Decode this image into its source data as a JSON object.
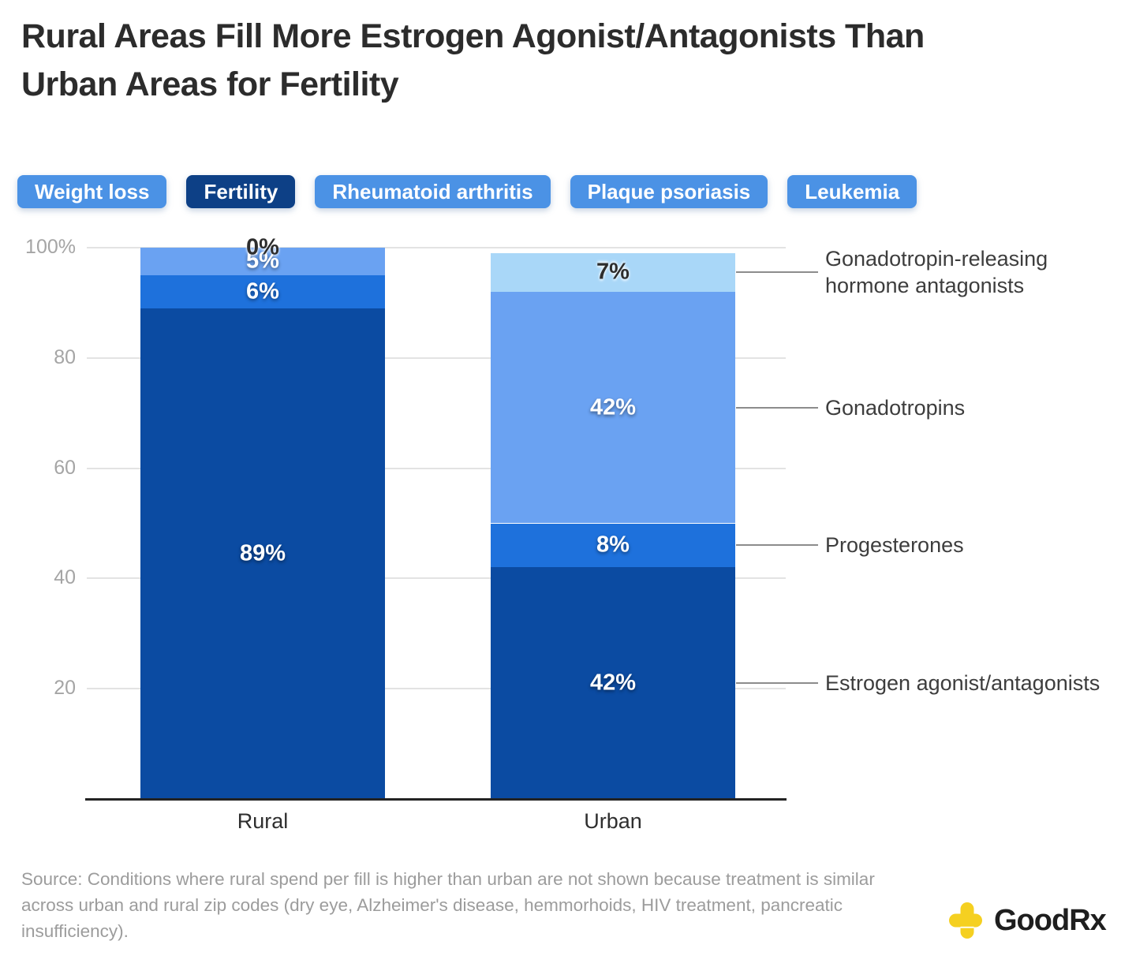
{
  "title": {
    "lines": [
      "Rural Areas Fill More Estrogen Agonist/Antagonists Than",
      "Urban Areas for Fertility"
    ]
  },
  "tabs": [
    {
      "label": "Weight loss",
      "selected": false
    },
    {
      "label": "Fertility",
      "selected": true
    },
    {
      "label": "Rheumatoid arthritis",
      "selected": false
    },
    {
      "label": "Plaque psoriasis",
      "selected": false
    },
    {
      "label": "Leukemia",
      "selected": false
    }
  ],
  "colors": {
    "tab": "#4b92e5",
    "tab_selected": "#0d4086",
    "gridline": "#e3e3e3",
    "axis_line": "#232323",
    "connector": "#8c8c8c",
    "tick_label": "#a5a5a5",
    "legend_text": "#3d3d3d",
    "source_text": "#9c9c9c"
  },
  "chart_data": {
    "type": "bar",
    "stacked": true,
    "categories": [
      "Rural",
      "Urban"
    ],
    "series": [
      {
        "name": "Estrogen agonist/antagonists",
        "color": "#0b4ba2",
        "label_style": "light",
        "values": [
          89,
          42
        ]
      },
      {
        "name": "Progesterones",
        "color": "#1e71dc",
        "label_style": "light",
        "values": [
          6,
          8
        ]
      },
      {
        "name": "Gonadotropins",
        "color": "#6aa2f2",
        "label_style": "light",
        "values": [
          5,
          42
        ]
      },
      {
        "name": "Gonadotropin-releasing hormone antagonists",
        "color": "#a9d7f8",
        "label_style": "dark",
        "values": [
          0,
          7
        ]
      }
    ],
    "value_labels": {
      "Rural": [
        "89%",
        "6%",
        "5%",
        "0%"
      ],
      "Urban": [
        "42%",
        "8%",
        "42%",
        "7%"
      ]
    },
    "yticks": [
      {
        "v": 100,
        "label": "100%"
      },
      {
        "v": 80,
        "label": "80"
      },
      {
        "v": 60,
        "label": "60"
      },
      {
        "v": 40,
        "label": "40"
      },
      {
        "v": 20,
        "label": "20"
      }
    ],
    "ylim": [
      0,
      100
    ],
    "grid": true,
    "legend_position": "right"
  },
  "legend": [
    {
      "name": "Gonadotropin-releasing hormone antagonists",
      "lines": [
        "Gonadotropin-releasing",
        "hormone antagonists"
      ]
    },
    {
      "name": "Gonadotropins",
      "lines": [
        "Gonadotropins"
      ]
    },
    {
      "name": "Progesterones",
      "lines": [
        "Progesterones"
      ]
    },
    {
      "name": "Estrogen agonist/antagonists",
      "lines": [
        "Estrogen agonist/antagonists"
      ]
    }
  ],
  "source": "Source: Conditions where rural spend per fill is higher than urban are not shown because treatment is similar across urban and rural zip codes (dry eye, Alzheimer's disease, hemmorhoids, HIV treatment, pancreatic insufficiency).",
  "logo": {
    "text": "GoodRx",
    "icon": "goodrx-cross-icon",
    "icon_color": "#f5d021"
  }
}
